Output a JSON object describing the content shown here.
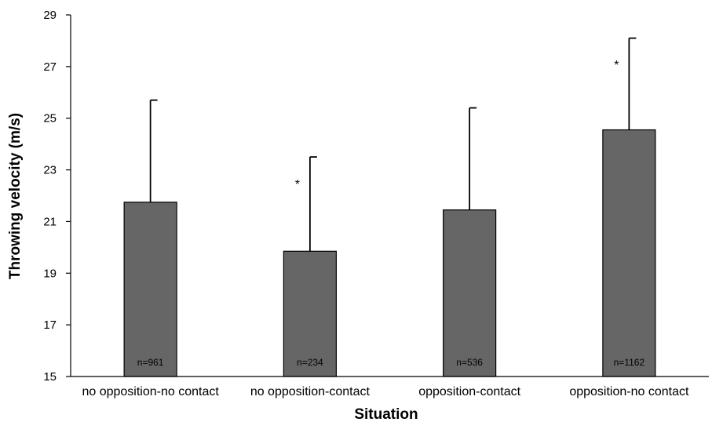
{
  "chart_data": {
    "type": "bar",
    "categories": [
      "no opposition-no contact",
      "no opposition-contact",
      "opposition-contact",
      "opposition-no contact"
    ],
    "values": [
      21.75,
      19.85,
      21.45,
      24.55
    ],
    "error_upper": [
      25.7,
      23.5,
      25.4,
      28.1
    ],
    "sample_sizes": [
      "n=961",
      "n=234",
      "n=536",
      "n=1162"
    ],
    "significance": [
      "",
      "*",
      "",
      "*"
    ],
    "xlabel": "Situation",
    "ylabel": "Throwing velocity (m/s)",
    "ylim": [
      15,
      29
    ],
    "yticks": [
      "15",
      "17",
      "19",
      "21",
      "23",
      "25",
      "27",
      "29"
    ],
    "bar_color": "#666666",
    "grid": false
  }
}
